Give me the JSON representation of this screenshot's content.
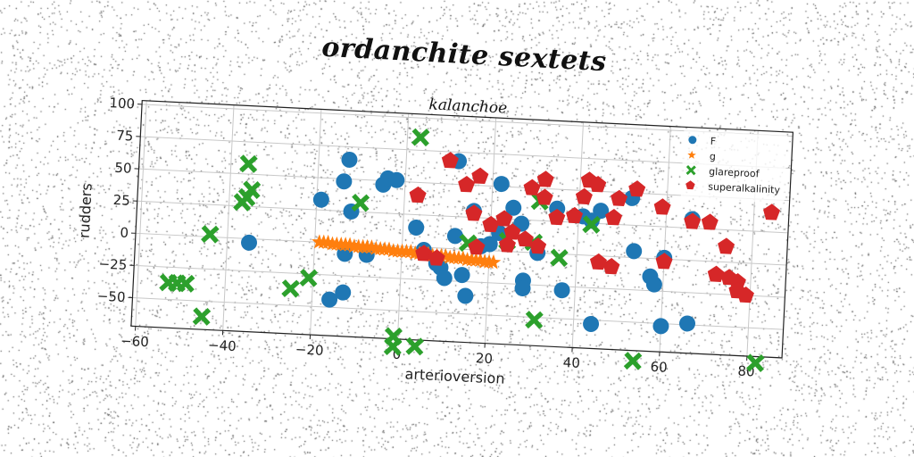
{
  "page": {
    "suptitle": "ordanchite sextets"
  },
  "chart_data": {
    "type": "scatter",
    "title": "kalanchoe",
    "xlabel": "arterioversion",
    "ylabel": "rudders",
    "xlim": [
      -61,
      88
    ],
    "ylim": [
      -72,
      103
    ],
    "xticks": [
      -60,
      -40,
      -20,
      0,
      20,
      40,
      60,
      80
    ],
    "yticks": [
      -50,
      -25,
      0,
      25,
      50,
      75,
      100
    ],
    "grid": true,
    "legend_position": "top-right",
    "series": [
      {
        "name": "F",
        "marker": "circle",
        "color": "#1f77b4",
        "points": [
          [
            -13,
            65
          ],
          [
            -14,
            48
          ],
          [
            -19,
            33
          ],
          [
            -12,
            25
          ],
          [
            -5,
            47
          ],
          [
            -4,
            52
          ],
          [
            -2,
            51
          ],
          [
            -35,
            -3
          ],
          [
            -13,
            -8
          ],
          [
            -8,
            -8
          ],
          [
            -13,
            -38
          ],
          [
            -16,
            -44
          ],
          [
            3,
            15
          ],
          [
            5,
            -2
          ],
          [
            8,
            -12
          ],
          [
            9,
            -15
          ],
          [
            10,
            -23
          ],
          [
            14,
            -20
          ],
          [
            15,
            -36
          ],
          [
            12,
            68
          ],
          [
            12,
            10
          ],
          [
            16,
            30
          ],
          [
            18,
            3
          ],
          [
            20,
            5
          ],
          [
            22,
            14
          ],
          [
            22,
            52
          ],
          [
            25,
            34
          ],
          [
            27,
            22
          ],
          [
            28,
            -22
          ],
          [
            28,
            -28
          ],
          [
            31,
            0
          ],
          [
            35,
            35
          ],
          [
            37,
            -28
          ],
          [
            41,
            30
          ],
          [
            43,
            27
          ],
          [
            45,
            35
          ],
          [
            44,
            -53
          ],
          [
            52,
            46
          ],
          [
            53,
            5
          ],
          [
            57,
            -14
          ],
          [
            58,
            -20
          ],
          [
            60,
            1
          ],
          [
            60,
            -52
          ],
          [
            66,
            32
          ],
          [
            66,
            -49
          ]
        ]
      },
      {
        "name": "g",
        "marker": "star",
        "color": "#ff7f0e",
        "points": [
          [
            -19,
            0
          ],
          [
            -18,
            0
          ],
          [
            -17,
            0
          ],
          [
            -16,
            -1
          ],
          [
            -15,
            -1
          ],
          [
            -14,
            -1
          ],
          [
            -13,
            -1
          ],
          [
            -12,
            -1
          ],
          [
            -11,
            -2
          ],
          [
            -10,
            -2
          ],
          [
            -9,
            -2
          ],
          [
            -8,
            -2
          ],
          [
            -7,
            -2
          ],
          [
            -6,
            -3
          ],
          [
            -5,
            -3
          ],
          [
            -4,
            -3
          ],
          [
            -3,
            -3
          ],
          [
            -2,
            -4
          ],
          [
            -1,
            -4
          ],
          [
            0,
            -4
          ],
          [
            1,
            -4
          ],
          [
            2,
            -4
          ],
          [
            3,
            -5
          ],
          [
            4,
            -5
          ],
          [
            5,
            -5
          ],
          [
            6,
            -5
          ],
          [
            7,
            -6
          ],
          [
            8,
            -6
          ],
          [
            9,
            -6
          ],
          [
            10,
            -6
          ],
          [
            11,
            -7
          ],
          [
            12,
            -7
          ],
          [
            13,
            -7
          ],
          [
            14,
            -7
          ],
          [
            15,
            -8
          ],
          [
            16,
            -8
          ],
          [
            17,
            -8
          ],
          [
            18,
            -8
          ],
          [
            19,
            -9
          ],
          [
            20,
            -9
          ],
          [
            21,
            -9
          ]
        ]
      },
      {
        "name": "glareproof",
        "marker": "x",
        "color": "#2ca02c",
        "points": [
          [
            -36,
            58
          ],
          [
            -35,
            38
          ],
          [
            -36,
            32
          ],
          [
            -37,
            28
          ],
          [
            -44,
            2
          ],
          [
            -53,
            -37
          ],
          [
            -51,
            -37
          ],
          [
            -49,
            -37
          ],
          [
            -45,
            -62
          ],
          [
            -25,
            -37
          ],
          [
            -21,
            -28
          ],
          [
            -10,
            32
          ],
          [
            3,
            85
          ],
          [
            15,
            5
          ],
          [
            24,
            8
          ],
          [
            30,
            8
          ],
          [
            31,
            40
          ],
          [
            36,
            -3
          ],
          [
            43,
            24
          ],
          [
            31,
            -52
          ],
          [
            -1,
            -70
          ],
          [
            -1,
            -78
          ],
          [
            4,
            -77
          ],
          [
            54,
            -80
          ],
          [
            82,
            -77
          ]
        ]
      },
      {
        "name": "superalkalinity",
        "marker": "pentagon",
        "color": "#d62728",
        "points": [
          [
            3,
            40
          ],
          [
            10,
            68
          ],
          [
            14,
            50
          ],
          [
            17,
            57
          ],
          [
            16,
            28
          ],
          [
            20,
            20
          ],
          [
            23,
            25
          ],
          [
            25,
            15
          ],
          [
            17,
            2
          ],
          [
            24,
            5
          ],
          [
            28,
            10
          ],
          [
            31,
            5
          ],
          [
            29,
            50
          ],
          [
            32,
            57
          ],
          [
            32,
            43
          ],
          [
            35,
            28
          ],
          [
            39,
            30
          ],
          [
            41,
            45
          ],
          [
            42,
            58
          ],
          [
            44,
            55
          ],
          [
            48,
            30
          ],
          [
            49,
            45
          ],
          [
            53,
            53
          ],
          [
            5,
            -5
          ],
          [
            8,
            -8
          ],
          [
            45,
            -5
          ],
          [
            48,
            -8
          ],
          [
            59,
            40
          ],
          [
            60,
            -2
          ],
          [
            66,
            30
          ],
          [
            70,
            30
          ],
          [
            74,
            12
          ],
          [
            72,
            -10
          ],
          [
            75,
            -12
          ],
          [
            77,
            -15
          ],
          [
            77,
            -22
          ],
          [
            79,
            -25
          ],
          [
            84,
            40
          ]
        ]
      }
    ]
  }
}
